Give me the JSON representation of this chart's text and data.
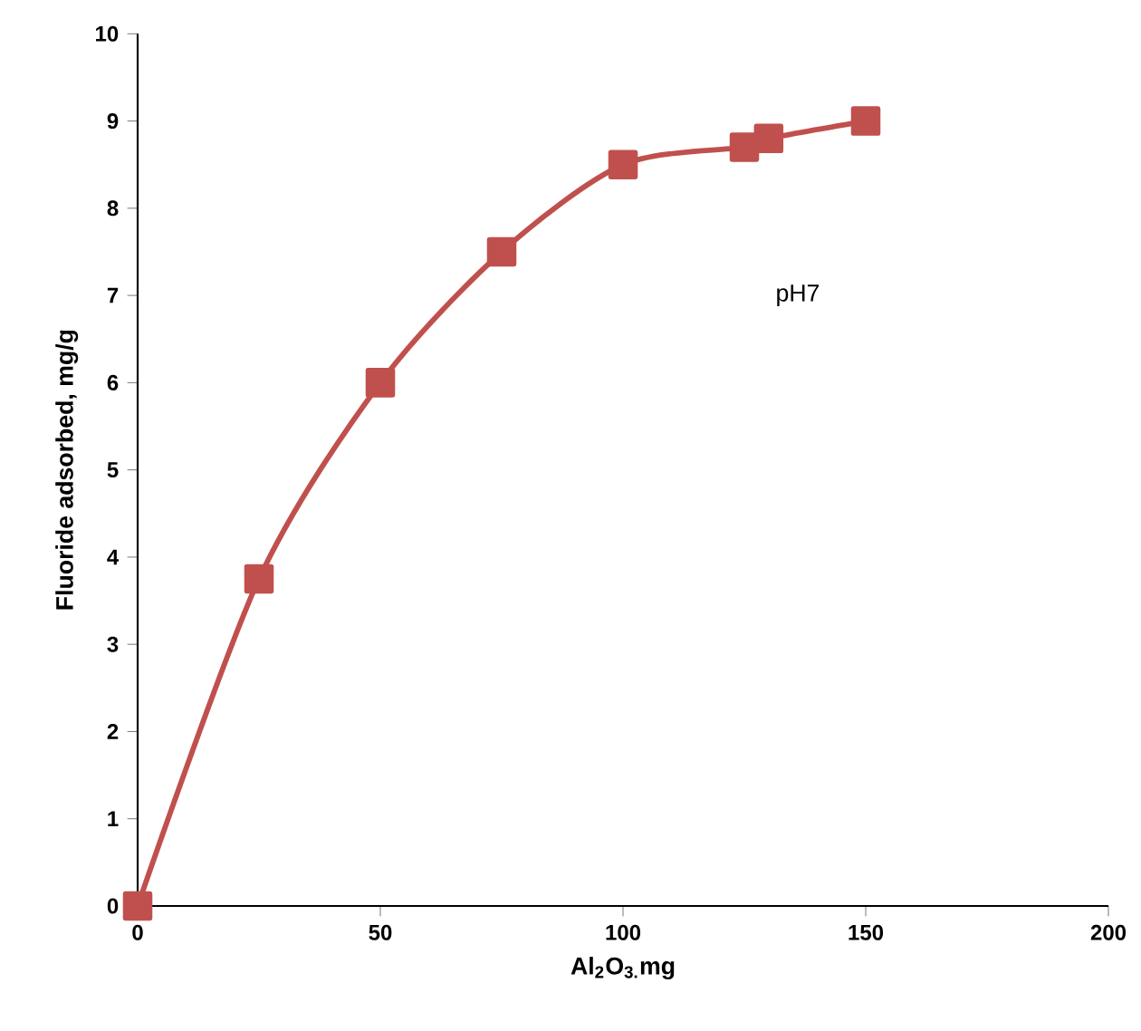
{
  "chart_data": {
    "type": "line",
    "xlabel": "Al$_{2}$O$_{3.}$mg",
    "ylabel": "Fluoride adsorbed, mg/g",
    "x": [
      0,
      25,
      50,
      75,
      100,
      125,
      130,
      150
    ],
    "series": [
      {
        "color": "#c0504d",
        "values": [
          0,
          3.75,
          6,
          7.5,
          8.5,
          8.7,
          8.8,
          9
        ]
      }
    ],
    "xlim": [
      0,
      200
    ],
    "xticks": [
      0,
      50,
      100,
      150,
      200
    ],
    "ylim": [
      0,
      10
    ],
    "yticks": [
      0,
      1,
      2,
      3,
      4,
      5,
      6,
      7,
      8,
      9,
      10
    ],
    "annotations": [
      "pH7"
    ],
    "marker": "square",
    "line_style": "solid",
    "grid": false
  }
}
